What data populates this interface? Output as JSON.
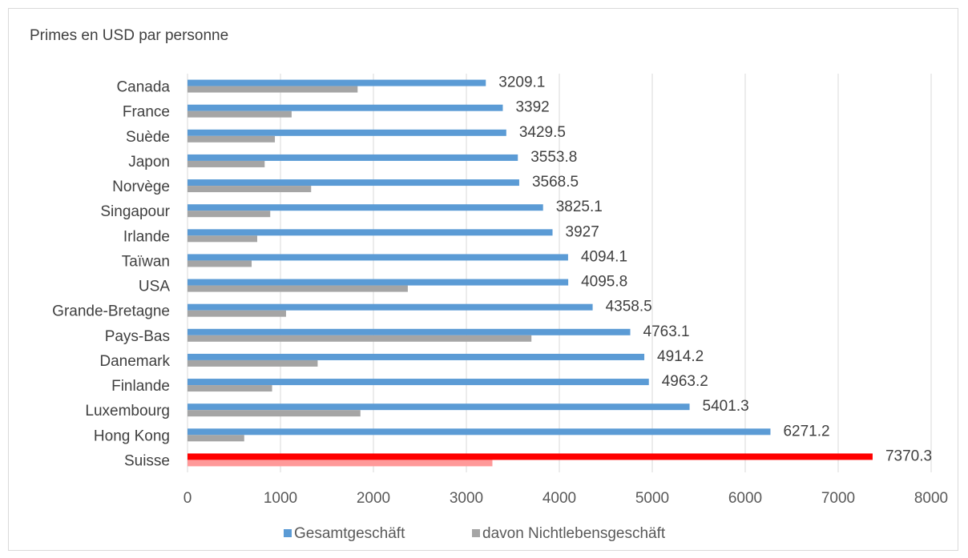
{
  "chart_data": {
    "type": "bar",
    "orientation": "horizontal",
    "title": "Primes en USD par personne",
    "categories": [
      "Canada",
      "France",
      "Suède",
      "Japon",
      "Norvège",
      "Singapour",
      "Irlande",
      "Taïwan",
      "USA",
      "Grande-Bretagne",
      "Pays-Bas",
      "Danemark",
      "Finlande",
      "Luxembourg",
      "Hong Kong",
      "Suisse"
    ],
    "series": [
      {
        "name": "Gesamtgeschäft",
        "color": "#5b9bd5",
        "values": [
          3209.1,
          3392,
          3429.5,
          3553.8,
          3568.5,
          3825.1,
          3927,
          4094.1,
          4095.8,
          4358.5,
          4763.1,
          4914.2,
          4963.2,
          5401.3,
          6271.2,
          7370.3
        ],
        "data_labels": [
          "3209.1",
          "3392",
          "3429.5",
          "3553.8",
          "3568.5",
          "3825.1",
          "3927",
          "4094.1",
          "4095.8",
          "4358.5",
          "4763.1",
          "4914.2",
          "4963.2",
          "5401.3",
          "6271.2",
          "7370.3"
        ]
      },
      {
        "name": "davon Nichtlebensgeschäft",
        "color": "#a5a5a5",
        "values": [
          1830,
          1120,
          940,
          830,
          1330,
          890,
          750,
          690,
          2370,
          1060,
          3700,
          1400,
          910,
          1860,
          610,
          3280
        ]
      }
    ],
    "highlight": {
      "category": "Suisse",
      "colors": [
        "#ff0000",
        "#ff9999"
      ]
    },
    "xlim": [
      0,
      8000
    ],
    "xticks": [
      "0",
      "1000",
      "2000",
      "3000",
      "4000",
      "5000",
      "6000",
      "7000",
      "8000"
    ],
    "xlabel": "",
    "ylabel": "",
    "grid": "vertical",
    "legend_position": "bottom"
  }
}
